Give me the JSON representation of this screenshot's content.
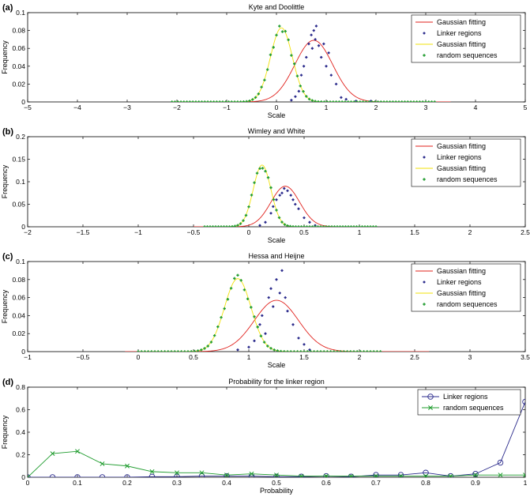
{
  "chart_data": [
    {
      "panel_label": "(a)",
      "type": "line",
      "title": "Kyte and Doolittle",
      "xlabel": "Scale",
      "ylabel": "Frequency",
      "xlim": [
        -5,
        5
      ],
      "ylim": [
        0,
        0.1
      ],
      "xticks": [
        -5,
        -4,
        -3,
        -2,
        -1,
        0,
        1,
        2,
        3,
        4,
        5
      ],
      "yticks": [
        0,
        0.02,
        0.04,
        0.06,
        0.08,
        0.1
      ],
      "xtick_labels": [
        "−5",
        "−4",
        "−3",
        "−2",
        "−1",
        "0",
        "1",
        "2",
        "3",
        "4",
        "5"
      ],
      "ytick_labels": [
        "0",
        "0.02",
        "0.04",
        "0.06",
        "0.08",
        "0.1"
      ],
      "legend": [
        "Gaussian fitting",
        "Linker regions",
        "Gaussian fitting",
        "random sequences"
      ],
      "legend_position": "top-right",
      "series": [
        {
          "name": "Gaussian fitting",
          "kind": "curve",
          "color": "#e0201b",
          "mean": 0.75,
          "sd": 0.38,
          "peak": 0.069,
          "range": [
            -0.6,
            3.5
          ]
        },
        {
          "name": "Linker regions",
          "kind": "points",
          "color": "#2b2b8c",
          "x": [
            0.3,
            0.38,
            0.45,
            0.5,
            0.55,
            0.6,
            0.65,
            0.7,
            0.72,
            0.75,
            0.78,
            0.8,
            0.85,
            0.9,
            0.95,
            1.0,
            1.05,
            1.1,
            1.2,
            1.3,
            1.4,
            1.6,
            1.9
          ],
          "y": [
            0.002,
            0.006,
            0.012,
            0.03,
            0.04,
            0.05,
            0.065,
            0.075,
            0.06,
            0.08,
            0.07,
            0.085,
            0.063,
            0.05,
            0.065,
            0.04,
            0.055,
            0.03,
            0.02,
            0.005,
            0.003,
            0.001,
            0.001
          ]
        },
        {
          "name": "Gaussian fitting",
          "kind": "curve",
          "color": "#f2e20a",
          "mean": 0.1,
          "sd": 0.22,
          "peak": 0.083,
          "range": [
            -2.1,
            3.2
          ]
        },
        {
          "name": "random sequences",
          "kind": "points",
          "color": "#1f9c2e",
          "mean": 0.1,
          "sd": 0.22,
          "peak": 0.083,
          "range": [
            -2.1,
            3.2
          ],
          "step": 0.06
        }
      ]
    },
    {
      "panel_label": "(b)",
      "type": "line",
      "title": "Wimley and White",
      "xlabel": "Scale",
      "ylabel": "Frequency",
      "xlim": [
        -2,
        2.5
      ],
      "ylim": [
        0,
        0.2
      ],
      "xticks": [
        -2,
        -1.5,
        -1,
        -0.5,
        0,
        0.5,
        1,
        1.5,
        2,
        2.5
      ],
      "yticks": [
        0,
        0.05,
        0.1,
        0.15,
        0.2
      ],
      "xtick_labels": [
        "−2",
        "−1.5",
        "−1",
        "−0.5",
        "0",
        "0.5",
        "1",
        "1.5",
        "2",
        "2.5"
      ],
      "ytick_labels": [
        "0",
        "0.05",
        "0.1",
        "0.15",
        "0.2"
      ],
      "legend": [
        "Gaussian fitting",
        "Linker regions",
        "Gaussian fitting",
        "random sequences"
      ],
      "legend_position": "top-right",
      "series": [
        {
          "name": "Gaussian fitting",
          "kind": "curve",
          "color": "#e0201b",
          "mean": 0.33,
          "sd": 0.13,
          "peak": 0.09,
          "range": [
            -0.5,
            1.15
          ]
        },
        {
          "name": "Linker regions",
          "kind": "points",
          "color": "#2b2b8c",
          "x": [
            0.1,
            0.15,
            0.2,
            0.22,
            0.25,
            0.28,
            0.3,
            0.32,
            0.35,
            0.38,
            0.4,
            0.42,
            0.45,
            0.5,
            0.55,
            0.6
          ],
          "y": [
            0.003,
            0.01,
            0.03,
            0.045,
            0.06,
            0.07,
            0.075,
            0.085,
            0.08,
            0.07,
            0.06,
            0.05,
            0.04,
            0.02,
            0.01,
            0.003
          ]
        },
        {
          "name": "Gaussian fitting",
          "kind": "curve",
          "color": "#f2e20a",
          "mean": 0.12,
          "sd": 0.08,
          "peak": 0.137,
          "range": [
            -0.4,
            1.15
          ]
        },
        {
          "name": "random sequences",
          "kind": "points",
          "color": "#1f9c2e",
          "mean": 0.12,
          "sd": 0.08,
          "peak": 0.137,
          "range": [
            -0.4,
            1.15
          ],
          "step": 0.025
        }
      ]
    },
    {
      "panel_label": "(c)",
      "type": "line",
      "title": "Hessa and Heijne",
      "xlabel": "Scale",
      "ylabel": "Frequency",
      "xlim": [
        -1,
        3.5
      ],
      "ylim": [
        0,
        0.1
      ],
      "xticks": [
        -1,
        -0.5,
        0,
        0.5,
        1,
        1.5,
        2,
        2.5,
        3,
        3.5
      ],
      "yticks": [
        0,
        0.02,
        0.04,
        0.06,
        0.08,
        0.1
      ],
      "xtick_labels": [
        "−1",
        "−0.5",
        "0",
        "0.5",
        "1",
        "1.5",
        "2",
        "2.5",
        "3",
        "3.5"
      ],
      "ytick_labels": [
        "0",
        "0.02",
        "0.04",
        "0.06",
        "0.08",
        "0.1"
      ],
      "legend": [
        "Gaussian fitting",
        "Linker regions",
        "Gaussian fitting",
        "random sequences"
      ],
      "legend_position": "top-right",
      "series": [
        {
          "name": "Gaussian fitting",
          "kind": "curve",
          "color": "#e0201b",
          "mean": 1.25,
          "sd": 0.2,
          "peak": 0.057,
          "range": [
            -0.12,
            2.63
          ]
        },
        {
          "name": "Linker regions",
          "kind": "points",
          "color": "#2b2b8c",
          "x": [
            0.9,
            1.0,
            1.05,
            1.1,
            1.12,
            1.15,
            1.18,
            1.2,
            1.22,
            1.25,
            1.28,
            1.3,
            1.33,
            1.35,
            1.4,
            1.45,
            1.5,
            1.55
          ],
          "y": [
            0.002,
            0.005,
            0.012,
            0.03,
            0.04,
            0.02,
            0.06,
            0.07,
            0.05,
            0.08,
            0.065,
            0.09,
            0.06,
            0.045,
            0.03,
            0.015,
            0.008,
            0.002
          ]
        },
        {
          "name": "Gaussian fitting",
          "kind": "curve",
          "color": "#f2e20a",
          "mean": 0.9,
          "sd": 0.12,
          "peak": 0.081,
          "range": [
            0.0,
            2.2
          ]
        },
        {
          "name": "random sequences",
          "kind": "points",
          "color": "#1f9c2e",
          "mean": 0.9,
          "sd": 0.12,
          "peak": 0.081,
          "range": [
            0.0,
            2.2
          ],
          "step": 0.03
        }
      ]
    },
    {
      "panel_label": "(d)",
      "type": "line",
      "title": "Probability for the linker region",
      "xlabel": "Probability",
      "ylabel": "Frequency",
      "xlim": [
        0,
        1
      ],
      "ylim": [
        0,
        0.8
      ],
      "xticks": [
        0,
        0.1,
        0.2,
        0.3,
        0.4,
        0.5,
        0.6,
        0.7,
        0.8,
        0.9,
        1
      ],
      "yticks": [
        0,
        0.2,
        0.4,
        0.6,
        0.8
      ],
      "xtick_labels": [
        "0",
        "0.1",
        "0.2",
        "0.3",
        "0.4",
        "0.5",
        "0.6",
        "0.7",
        "0.8",
        "0.9",
        "1"
      ],
      "ytick_labels": [
        "0",
        "0.2",
        "0.4",
        "0.6",
        "0.8"
      ],
      "legend": [
        "Linker regions",
        "random sequences"
      ],
      "legend_position": "top-right",
      "series": [
        {
          "name": "Linker regions",
          "kind": "line-markers",
          "marker": "circle",
          "color": "#2b2b8c",
          "x": [
            0,
            0.05,
            0.1,
            0.15,
            0.2,
            0.25,
            0.3,
            0.35,
            0.4,
            0.45,
            0.5,
            0.55,
            0.6,
            0.65,
            0.7,
            0.75,
            0.8,
            0.85,
            0.9,
            0.95,
            1
          ],
          "y": [
            0,
            0,
            0,
            0,
            0,
            0.005,
            0.005,
            0.01,
            0.01,
            0.01,
            0.005,
            0.005,
            0.01,
            0.005,
            0.02,
            0.02,
            0.04,
            0.01,
            0.03,
            0.13,
            0.67
          ]
        },
        {
          "name": "random sequences",
          "kind": "line-markers",
          "marker": "x",
          "color": "#1f9c2e",
          "x": [
            0,
            0.05,
            0.1,
            0.15,
            0.2,
            0.25,
            0.3,
            0.35,
            0.4,
            0.45,
            0.5,
            0.55,
            0.6,
            0.65,
            0.7,
            0.75,
            0.8,
            0.85,
            0.9,
            0.95,
            1
          ],
          "y": [
            0,
            0.21,
            0.23,
            0.12,
            0.1,
            0.05,
            0.04,
            0.04,
            0.02,
            0.03,
            0.02,
            0.01,
            0.01,
            0.01,
            0.01,
            0.01,
            0.01,
            0.01,
            0.02,
            0.02,
            0.02
          ]
        }
      ]
    }
  ]
}
